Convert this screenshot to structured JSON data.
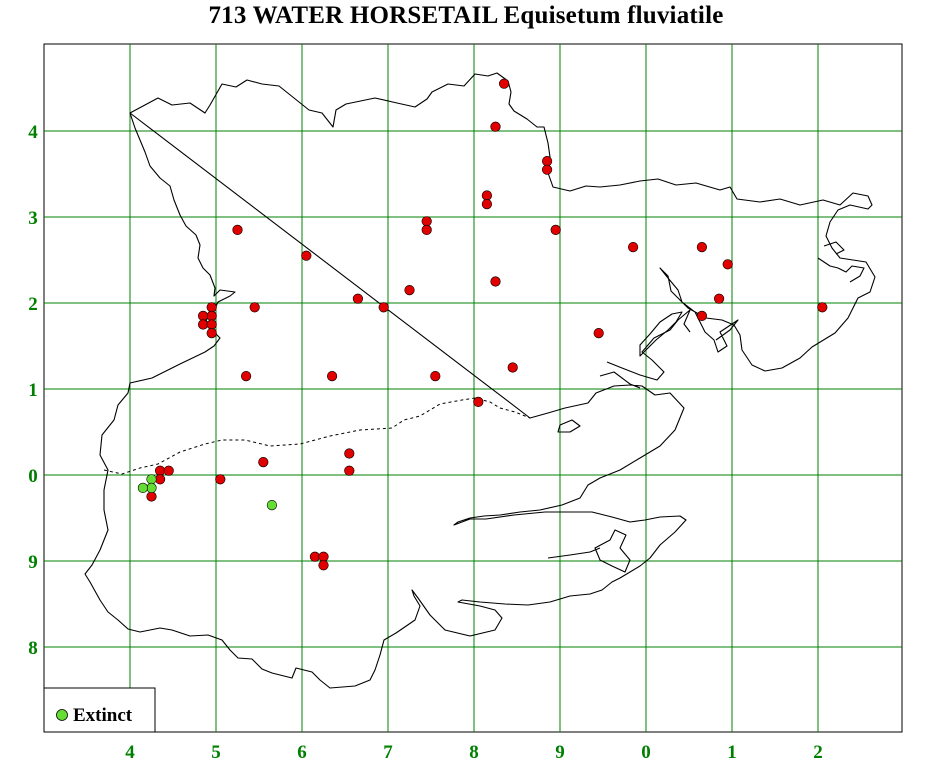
{
  "title": "713 WATER HORSETAIL Equisetum fluviatile",
  "axes": {
    "x_ticks": [
      "4",
      "5",
      "6",
      "7",
      "8",
      "9",
      "0",
      "1",
      "2"
    ],
    "y_ticks": [
      "4",
      "3",
      "2",
      "1",
      "0",
      "9",
      "8"
    ]
  },
  "legend": {
    "entries": [
      {
        "label": "Extinct",
        "color": "#66dd33"
      }
    ]
  },
  "colors": {
    "grid": "#008000",
    "tick_labels": "#008000",
    "present_record": "#e00000",
    "extinct_record": "#66dd33",
    "outline": "#000000"
  },
  "records": {
    "present": [
      [
        8.35,
        4.55
      ],
      [
        8.25,
        4.05
      ],
      [
        8.85,
        3.65
      ],
      [
        8.85,
        3.55
      ],
      [
        8.15,
        3.25
      ],
      [
        8.15,
        3.15
      ],
      [
        7.45,
        2.95
      ],
      [
        7.45,
        2.85
      ],
      [
        8.95,
        2.85
      ],
      [
        5.25,
        2.85
      ],
      [
        6.05,
        2.55
      ],
      [
        9.85,
        2.65
      ],
      [
        10.65,
        2.65
      ],
      [
        10.95,
        2.45
      ],
      [
        8.25,
        2.25
      ],
      [
        7.25,
        2.15
      ],
      [
        6.65,
        2.05
      ],
      [
        6.95,
        1.95
      ],
      [
        5.45,
        1.95
      ],
      [
        4.95,
        1.95
      ],
      [
        4.95,
        1.85
      ],
      [
        4.85,
        1.85
      ],
      [
        4.85,
        1.75
      ],
      [
        4.95,
        1.75
      ],
      [
        4.95,
        1.65
      ],
      [
        10.85,
        2.05
      ],
      [
        10.65,
        1.85
      ],
      [
        12.05,
        1.95
      ],
      [
        9.45,
        1.65
      ],
      [
        8.45,
        1.25
      ],
      [
        7.55,
        1.15
      ],
      [
        6.35,
        1.15
      ],
      [
        5.35,
        1.15
      ],
      [
        8.05,
        0.85
      ],
      [
        6.55,
        0.25
      ],
      [
        6.55,
        0.05
      ],
      [
        5.55,
        0.15
      ],
      [
        4.35,
        0.05
      ],
      [
        4.45,
        0.05
      ],
      [
        4.35,
        -0.05
      ],
      [
        5.05,
        -0.05
      ],
      [
        4.25,
        -0.25
      ],
      [
        6.15,
        -0.95
      ],
      [
        6.25,
        -0.95
      ],
      [
        6.25,
        -1.05
      ]
    ],
    "extinct": [
      [
        4.25,
        -0.05
      ],
      [
        4.25,
        -0.15
      ],
      [
        4.15,
        -0.15
      ],
      [
        5.65,
        -0.35
      ]
    ]
  }
}
